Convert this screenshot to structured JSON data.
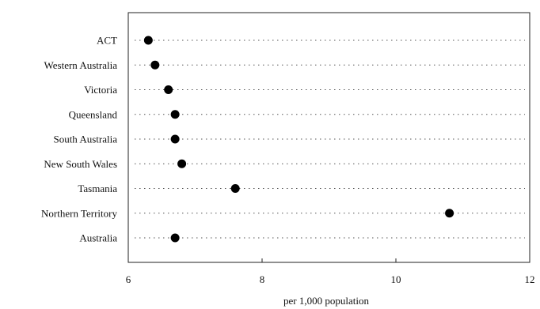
{
  "chart_data": {
    "type": "scatter",
    "orientation": "horizontal-dot-plot",
    "categories": [
      "ACT",
      "Western Australia",
      "Victoria",
      "Queensland",
      "South Australia",
      "New South Wales",
      "Tasmania",
      "Northern Territory",
      "Australia"
    ],
    "values": [
      6.3,
      6.4,
      6.6,
      6.7,
      6.7,
      6.8,
      7.6,
      10.8,
      6.7
    ],
    "xlabel": "per 1,000 population",
    "ylabel": "",
    "title": "",
    "xlim": [
      6,
      12
    ],
    "xticks": [
      6,
      8,
      10,
      12
    ],
    "xtick_labels": [
      "6",
      "8",
      "10",
      "12"
    ],
    "grid": "dotted guide lines per category",
    "marker_color": "#000000"
  }
}
